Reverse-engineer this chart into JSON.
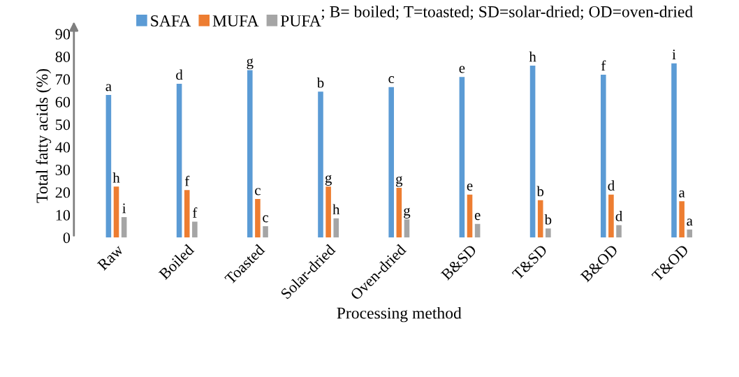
{
  "chart_data": {
    "type": "bar",
    "xlabel": "Processing method",
    "ylabel": "Total fatty acids (%)",
    "categories": [
      "Raw",
      "Boiled",
      "Toasted",
      "Solar-dried",
      "Oven-dried",
      "B&SD",
      "T&SD",
      "B&OD",
      "T&OD"
    ],
    "series": [
      {
        "name": "SAFA",
        "color": "#5b9bd5",
        "values": [
          63,
          68,
          74,
          64.5,
          66.5,
          71,
          76,
          72,
          77
        ],
        "value_labels": [
          "a",
          "d",
          "g",
          "b",
          "c",
          "e",
          "h",
          "f",
          "i"
        ]
      },
      {
        "name": "MUFA",
        "color": "#ed7d31",
        "values": [
          22.5,
          21,
          17,
          22.5,
          22,
          19,
          16.5,
          19,
          16
        ],
        "value_labels": [
          "h",
          "f",
          "c",
          "g",
          "g",
          "e",
          "b",
          "d",
          "a"
        ]
      },
      {
        "name": "PUFA",
        "color": "#a5a5a5",
        "values": [
          9,
          7,
          5,
          8.5,
          8,
          6,
          4,
          5.5,
          3.5
        ],
        "value_labels": [
          "i",
          "f",
          "c",
          "h",
          "g",
          "e",
          "b",
          "d",
          "a"
        ]
      }
    ],
    "ylim": [
      0,
      90
    ],
    "yticks": [
      0,
      10,
      20,
      30,
      40,
      50,
      60,
      70,
      80,
      90
    ],
    "legend": "top",
    "grid": false,
    "annotations": [
      "; B= boiled; T=toasted; SD=solar-dried; OD=oven-dried"
    ]
  }
}
